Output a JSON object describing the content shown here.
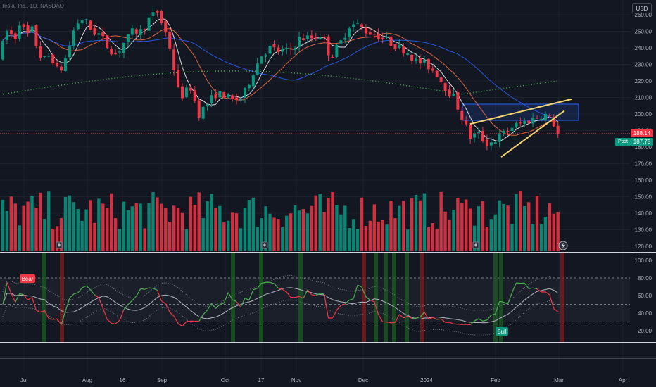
{
  "symbol": {
    "label": "Tesla, Inc., 1D, NASDAQ"
  },
  "currency": {
    "label": "USD"
  },
  "price_axis": {
    "labels": [
      "260.00",
      "250.00",
      "240.00",
      "230.00",
      "220.00",
      "210.00",
      "200.00",
      "190.00",
      "180.00",
      "170.00",
      "160.00",
      "150.00",
      "140.00",
      "130.00",
      "120.00"
    ]
  },
  "osc_axis": {
    "labels": [
      "100.00",
      "80.00",
      "60.00",
      "40.00",
      "20.00"
    ]
  },
  "time_axis": {
    "labels": [
      "Jul",
      "Aug",
      "16",
      "Sep",
      "Oct",
      "17",
      "Nov",
      "Dec",
      "2024",
      "Feb",
      "Mar",
      "Apr"
    ]
  },
  "last_price": {
    "value": "188.14",
    "color": "#f23645"
  },
  "post_market": {
    "label": "Post",
    "value": "187.78",
    "color": "#089981"
  },
  "annotations": {
    "bear": "Bear",
    "bull": "Bull"
  },
  "colors": {
    "up": "#089981",
    "down": "#f23645",
    "background": "#131722",
    "wedge": "#f5d76e",
    "box": "#2962ff"
  },
  "icons": [
    "earnings-icon",
    "dividend-icon",
    "flash-icon"
  ]
}
